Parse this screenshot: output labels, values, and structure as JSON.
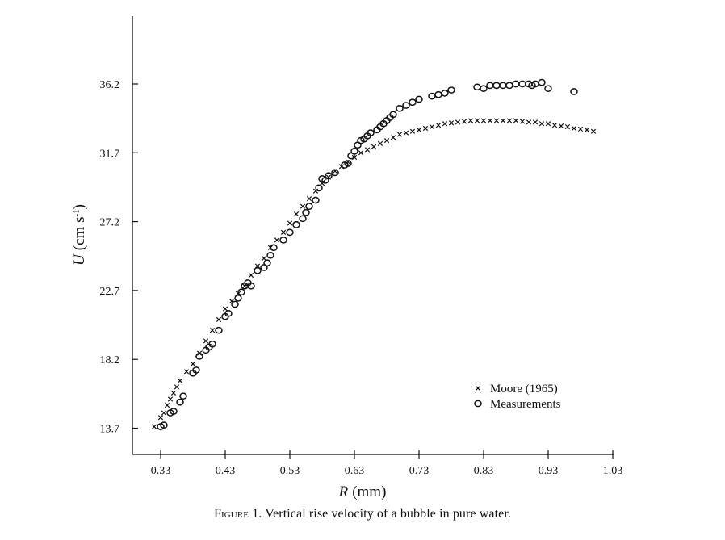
{
  "figure": {
    "caption_label": "Figure 1.",
    "caption_text": " Vertical rise velocity of a bubble in pure water."
  },
  "chart_data": {
    "type": "scatter",
    "title": "",
    "xlabel_var": "R",
    "xlabel_unit": "(mm)",
    "ylabel_var": "U",
    "ylabel_unit": "(cm s",
    "ylabel_exp": "-1",
    "ylabel_close": ")",
    "xlim": [
      0.3,
      1.03
    ],
    "ylim": [
      12.0,
      40.0
    ],
    "xticks": [
      0.33,
      0.43,
      0.53,
      0.63,
      0.73,
      0.83,
      0.93,
      1.03
    ],
    "xtick_labels": [
      "0.33",
      "0.43",
      "0.53",
      "0.63",
      "0.73",
      "0.83",
      "0.93",
      "1.03"
    ],
    "yticks": [
      13.7,
      18.2,
      22.7,
      27.2,
      31.7,
      36.2
    ],
    "ytick_labels": [
      "13.7",
      "18.2",
      "22.7",
      "27.2",
      "31.7",
      "36.2"
    ],
    "legend_position": "lower-right",
    "grid": false,
    "series": [
      {
        "name": "Moore (1965)",
        "marker": "cross",
        "x": [
          0.32,
          0.33,
          0.335,
          0.34,
          0.345,
          0.35,
          0.355,
          0.36,
          0.37,
          0.38,
          0.39,
          0.4,
          0.41,
          0.42,
          0.43,
          0.44,
          0.45,
          0.46,
          0.47,
          0.48,
          0.49,
          0.5,
          0.51,
          0.52,
          0.53,
          0.54,
          0.55,
          0.56,
          0.57,
          0.58,
          0.59,
          0.6,
          0.61,
          0.62,
          0.63,
          0.64,
          0.65,
          0.66,
          0.67,
          0.68,
          0.69,
          0.7,
          0.71,
          0.72,
          0.73,
          0.74,
          0.75,
          0.76,
          0.77,
          0.78,
          0.79,
          0.8,
          0.81,
          0.82,
          0.83,
          0.84,
          0.85,
          0.86,
          0.87,
          0.88,
          0.89,
          0.9,
          0.91,
          0.92,
          0.93,
          0.94,
          0.95,
          0.96,
          0.97,
          0.98,
          0.99,
          1.0
        ],
        "y": [
          13.8,
          14.4,
          14.7,
          15.2,
          15.6,
          16.0,
          16.4,
          16.8,
          17.4,
          17.9,
          18.6,
          19.4,
          20.1,
          20.8,
          21.5,
          22.0,
          22.5,
          23.0,
          23.7,
          24.3,
          24.8,
          25.5,
          26.0,
          26.5,
          27.1,
          27.7,
          28.2,
          28.7,
          29.2,
          29.7,
          30.1,
          30.5,
          30.8,
          31.1,
          31.4,
          31.7,
          31.9,
          32.1,
          32.3,
          32.5,
          32.7,
          32.9,
          33.0,
          33.1,
          33.2,
          33.3,
          33.4,
          33.5,
          33.6,
          33.65,
          33.7,
          33.75,
          33.8,
          33.8,
          33.8,
          33.8,
          33.8,
          33.8,
          33.8,
          33.8,
          33.75,
          33.7,
          33.7,
          33.6,
          33.6,
          33.5,
          33.45,
          33.4,
          33.3,
          33.25,
          33.2,
          33.1
        ]
      },
      {
        "name": "Measurements",
        "marker": "circle",
        "x": [
          0.33,
          0.335,
          0.345,
          0.35,
          0.36,
          0.365,
          0.38,
          0.385,
          0.39,
          0.4,
          0.405,
          0.41,
          0.42,
          0.43,
          0.435,
          0.445,
          0.45,
          0.455,
          0.46,
          0.465,
          0.47,
          0.48,
          0.49,
          0.495,
          0.5,
          0.505,
          0.52,
          0.53,
          0.54,
          0.55,
          0.555,
          0.56,
          0.57,
          0.575,
          0.58,
          0.585,
          0.59,
          0.6,
          0.615,
          0.62,
          0.625,
          0.63,
          0.635,
          0.64,
          0.645,
          0.65,
          0.655,
          0.665,
          0.67,
          0.675,
          0.68,
          0.685,
          0.69,
          0.7,
          0.71,
          0.72,
          0.73,
          0.75,
          0.76,
          0.77,
          0.78,
          0.82,
          0.83,
          0.84,
          0.85,
          0.86,
          0.87,
          0.88,
          0.89,
          0.9,
          0.905,
          0.91,
          0.92,
          0.93,
          0.97
        ],
        "y": [
          13.8,
          13.9,
          14.7,
          14.8,
          15.4,
          15.8,
          17.3,
          17.5,
          18.4,
          18.8,
          19.0,
          19.2,
          20.1,
          21.0,
          21.2,
          21.8,
          22.2,
          22.6,
          23.0,
          23.2,
          23.0,
          24.0,
          24.2,
          24.5,
          25.0,
          25.5,
          26.0,
          26.5,
          27.0,
          27.4,
          27.8,
          28.2,
          28.6,
          29.4,
          30.0,
          29.9,
          30.2,
          30.4,
          30.9,
          31.0,
          31.5,
          31.8,
          32.2,
          32.5,
          32.6,
          32.8,
          33.0,
          33.2,
          33.4,
          33.6,
          33.8,
          34.0,
          34.2,
          34.6,
          34.8,
          35.0,
          35.2,
          35.4,
          35.5,
          35.6,
          35.8,
          36.0,
          35.9,
          36.1,
          36.1,
          36.1,
          36.1,
          36.2,
          36.2,
          36.2,
          36.1,
          36.2,
          36.3,
          35.9,
          35.7
        ]
      }
    ]
  }
}
